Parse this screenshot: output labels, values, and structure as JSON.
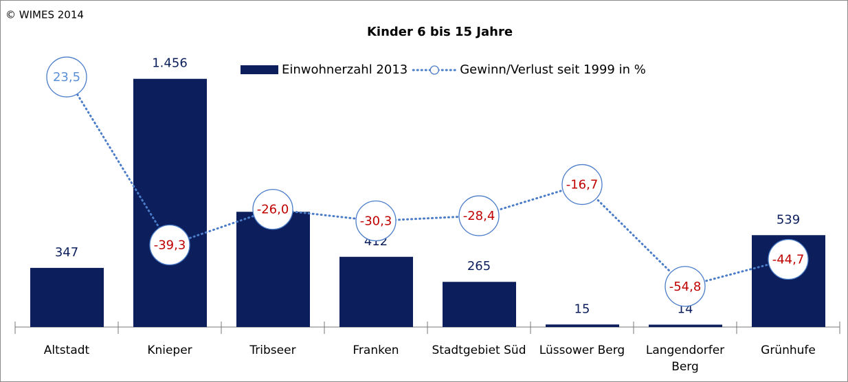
{
  "chart_data": {
    "type": "bar-line",
    "copyright": "© WIMES 2014",
    "title": "Kinder 6 bis 15 Jahre",
    "categories": [
      "Altstadt",
      "Knieper",
      "Tribseer",
      "Franken",
      "Stadtgebiet Süd",
      "Lüssower Berg",
      "Langendorfer Berg",
      "Grünhufe"
    ],
    "series": [
      {
        "name": "Einwohnerzahl 2013",
        "type": "bar",
        "color": "#0c1f5c",
        "values": [
          347,
          1456,
          676,
          412,
          265,
          15,
          14,
          539
        ],
        "value_labels": [
          "347",
          "1.456",
          "676",
          "412",
          "265",
          "15",
          "14",
          "539"
        ]
      },
      {
        "name": "Gewinn/Verlust seit 1999 in %",
        "type": "line",
        "axis": "y2",
        "color": "#4a7cc8",
        "label_color": "#5b8fd6",
        "negative_label_color": "#c00000",
        "values": [
          23.5,
          -39.3,
          -26.0,
          -30.3,
          -28.4,
          -16.7,
          -54.8,
          -44.7
        ],
        "value_labels": [
          "23,5",
          "-39,3",
          "-26,0",
          "-30,3",
          "-28,4",
          "-16,7",
          "-54,8",
          "-44,7"
        ]
      }
    ],
    "ylim": [
      0,
      1600
    ],
    "y2lim": [
      -70,
      32
    ],
    "legend": "top"
  }
}
